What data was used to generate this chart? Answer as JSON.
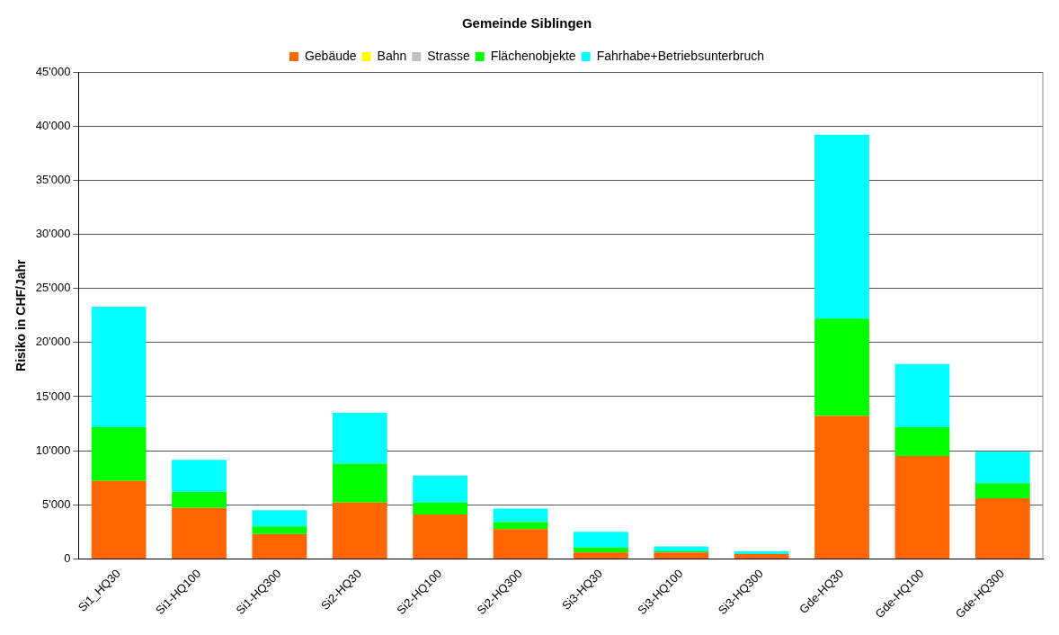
{
  "chart_data": {
    "type": "bar",
    "title": "Gemeinde Siblingen",
    "ylabel": "Risiko in CHF/Jahr",
    "stacked": true,
    "grid": "y",
    "legend": "top",
    "categories": [
      "Si1_HQ30",
      "Si1-HQ100",
      "Si1-HQ300",
      "Si2-HQ30",
      "Si2-HQ100",
      "Si2-HQ300",
      "Si3-HQ30",
      "Si3-HQ100",
      "Si3-HQ300",
      "Gde-HQ30",
      "Gde-HQ100",
      "Gde-HQ300"
    ],
    "series": [
      {
        "name": "Gebäude",
        "color": "#ff6600",
        "values": [
          7200,
          4700,
          2300,
          5200,
          4100,
          2750,
          600,
          600,
          450,
          13200,
          9500,
          5600
        ]
      },
      {
        "name": "Bahn",
        "color": "#ffff00",
        "values": [
          0,
          0,
          0,
          0,
          0,
          0,
          0,
          0,
          0,
          0,
          0,
          0
        ]
      },
      {
        "name": "Strasse",
        "color": "#c0c0c0",
        "values": [
          0,
          0,
          0,
          0,
          0,
          0,
          0,
          0,
          0,
          0,
          0,
          0
        ]
      },
      {
        "name": "Flächenobjekte",
        "color": "#00ff00",
        "values": [
          5000,
          1500,
          700,
          3600,
          1100,
          650,
          450,
          100,
          0,
          9000,
          2700,
          1400
        ]
      },
      {
        "name": "Fahrhabe+Betriebsunterbruch",
        "color": "#00ffff",
        "values": [
          11100,
          2950,
          1500,
          4700,
          2500,
          1250,
          1450,
          450,
          250,
          17000,
          5800,
          2900
        ]
      }
    ],
    "ylim": [
      0,
      45000
    ],
    "yticks": [
      {
        "value": 0,
        "label": "0"
      },
      {
        "value": 5000,
        "label": "5'000"
      },
      {
        "value": 10000,
        "label": "10'000"
      },
      {
        "value": 15000,
        "label": "15'000"
      },
      {
        "value": 20000,
        "label": "20'000"
      },
      {
        "value": 25000,
        "label": "25'000"
      },
      {
        "value": 30000,
        "label": "30'000"
      },
      {
        "value": 35000,
        "label": "35'000"
      },
      {
        "value": 40000,
        "label": "40'000"
      },
      {
        "value": 45000,
        "label": "45'000"
      }
    ]
  }
}
